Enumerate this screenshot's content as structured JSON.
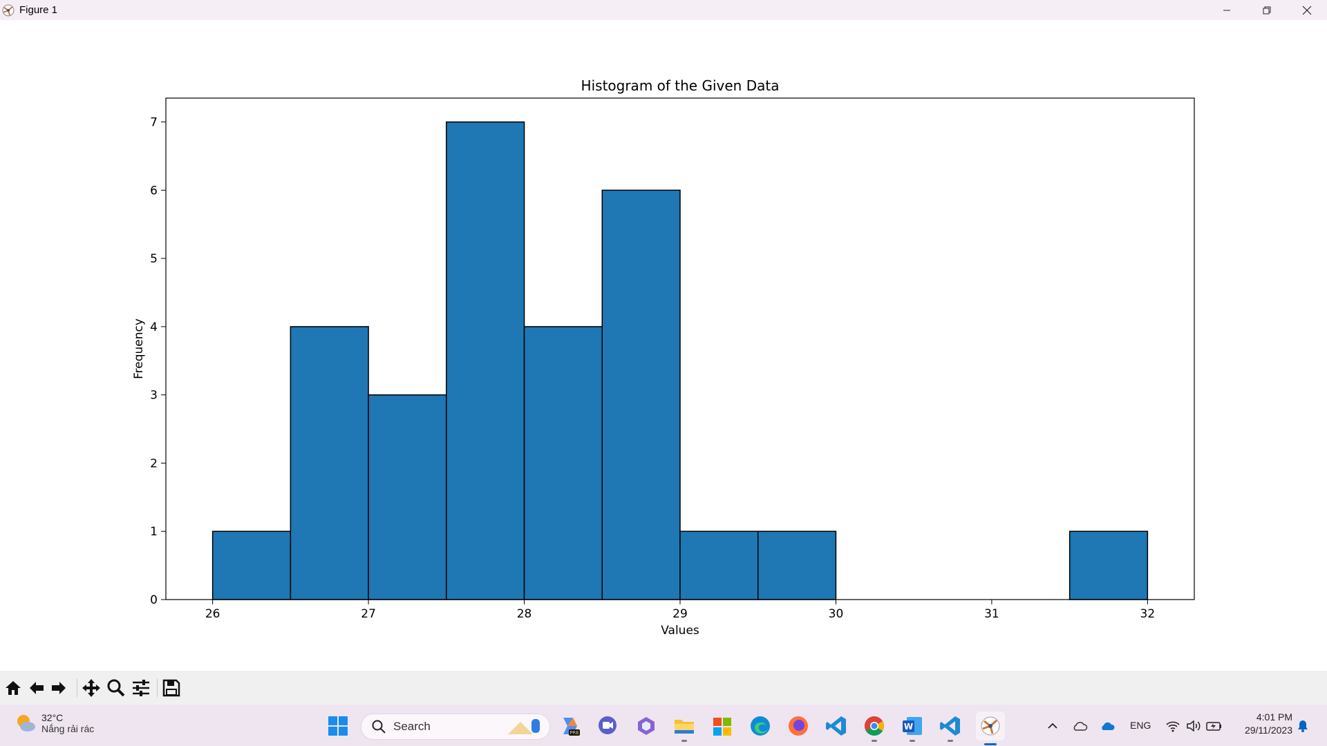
{
  "window": {
    "title": "Figure 1"
  },
  "chart_data": {
    "type": "bar",
    "title": "Histogram of the Given Data",
    "xlabel": "Values",
    "ylabel": "Frequency",
    "bins": [
      {
        "start": 26.0,
        "end": 26.5,
        "count": 1
      },
      {
        "start": 26.5,
        "end": 27.0,
        "count": 4
      },
      {
        "start": 27.0,
        "end": 27.5,
        "count": 3
      },
      {
        "start": 27.5,
        "end": 28.0,
        "count": 7
      },
      {
        "start": 28.0,
        "end": 28.5,
        "count": 4
      },
      {
        "start": 28.5,
        "end": 29.0,
        "count": 6
      },
      {
        "start": 29.0,
        "end": 29.5,
        "count": 1
      },
      {
        "start": 29.5,
        "end": 30.0,
        "count": 1
      },
      {
        "start": 30.0,
        "end": 30.5,
        "count": 0
      },
      {
        "start": 30.5,
        "end": 31.0,
        "count": 0
      },
      {
        "start": 31.0,
        "end": 31.5,
        "count": 0
      },
      {
        "start": 31.5,
        "end": 32.0,
        "count": 1
      }
    ],
    "xlim": [
      25.7,
      32.3
    ],
    "ylim": [
      0,
      7.35
    ],
    "xticks": [
      26,
      27,
      28,
      29,
      30,
      31,
      32
    ],
    "yticks": [
      0,
      1,
      2,
      3,
      4,
      5,
      6,
      7
    ],
    "bar_color": "#1f77b4",
    "edge_color": "#000000",
    "grid": false
  },
  "toolbar": {
    "buttons": [
      "home-icon",
      "back-icon",
      "forward-icon",
      "pan-icon",
      "zoom-icon",
      "configure-subplots-icon",
      "save-icon"
    ]
  },
  "taskbar": {
    "weather_temp": "32°C",
    "weather_condition": "Nắng rải rác",
    "search_label": "Search",
    "language": "ENG",
    "time": "4:01 PM",
    "date": "29/11/2023"
  }
}
